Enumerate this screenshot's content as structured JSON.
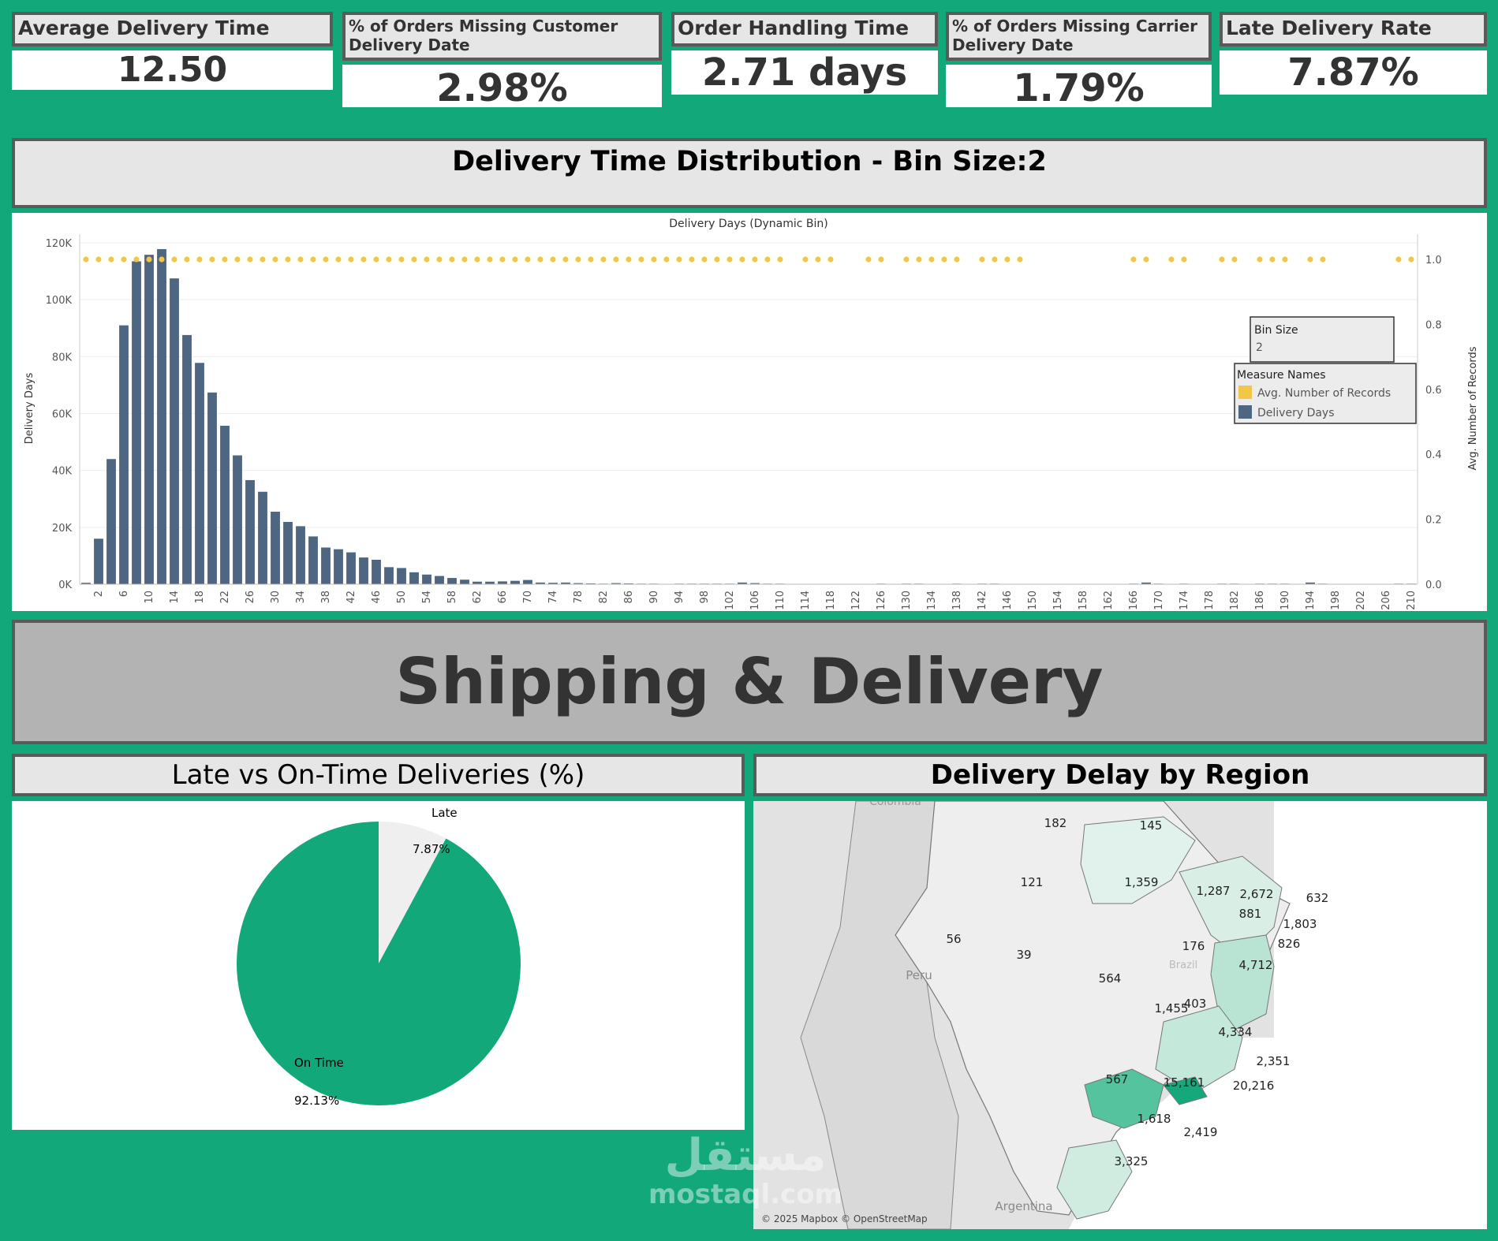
{
  "kpis": [
    {
      "title": "Average Delivery Time",
      "value": "12.50"
    },
    {
      "title": "% of Orders Missing Customer Delivery Date",
      "value": "2.98%"
    },
    {
      "title": "Order Handling Time",
      "value": "2.71 days"
    },
    {
      "title": "% of Orders Missing Carrier Delivery Date",
      "value": "1.79%"
    },
    {
      "title": "Late Delivery Rate",
      "value": "7.87%"
    }
  ],
  "distribution": {
    "panel_title": "Delivery Time Distribution - Bin Size:2",
    "chart_title": "Delivery Days (Dynamic Bin)",
    "y_left_label": "Delivery Days",
    "y_right_label": "Avg. Number of Records",
    "y_left_ticks": [
      "120K",
      "100K",
      "80K",
      "60K",
      "40K",
      "20K",
      "0K"
    ],
    "y_right_ticks": [
      "1.0",
      "0.8",
      "0.6",
      "0.4",
      "0.2",
      "0.0"
    ],
    "bin_size_label": "Bin Size",
    "bin_size_value": "2",
    "legend_title": "Measure Names",
    "legend_items": [
      {
        "label": "Avg. Number of Records",
        "color": "#f2c649"
      },
      {
        "label": "Delivery Days",
        "color": "#4e6680"
      }
    ]
  },
  "dashboard_title": "Shipping & Delivery",
  "pie": {
    "panel_title": "Late vs On-Time Deliveries (%)",
    "late_label": "Late",
    "late_value": "7.87%",
    "ontime_label": "On Time",
    "ontime_value": "92.13%"
  },
  "map": {
    "panel_title": "Delivery Delay by Region",
    "labels": [
      {
        "text": "Colombia"
      },
      {
        "text": "Peru"
      },
      {
        "text": "Argentina"
      },
      {
        "text": "Brazil"
      }
    ],
    "values": [
      "182",
      "145",
      "121",
      "1,359",
      "1,287",
      "2,672",
      "632",
      "881",
      "1,803",
      "826",
      "56",
      "39",
      "176",
      "4,712",
      "564",
      "1,455",
      "403",
      "4,334",
      "2,351",
      "567",
      "15,161",
      "20,216",
      "1,618",
      "2,419",
      "3,325"
    ],
    "attribution": "© 2025 Mapbox © OpenStreetMap"
  },
  "watermark": {
    "arabic": "مستقل",
    "latin": "mostaql.com"
  },
  "chart_data": [
    {
      "type": "bar",
      "title": "Delivery Days (Dynamic Bin)",
      "xlabel": "",
      "ylabel": "Delivery Days",
      "ylim": [
        0,
        120000
      ],
      "x_tick_labels": [
        2,
        6,
        10,
        14,
        18,
        22,
        26,
        30,
        34,
        38,
        42,
        46,
        50,
        54,
        58,
        62,
        66,
        70,
        74,
        78,
        82,
        86,
        90,
        94,
        98,
        102,
        106,
        110,
        114,
        118,
        122,
        126,
        130,
        134,
        138,
        142,
        146,
        150,
        154,
        158,
        162,
        166,
        170,
        174,
        178,
        182,
        186,
        190,
        194,
        198,
        202,
        206,
        210
      ],
      "series": [
        {
          "name": "Delivery Days",
          "x": [
            0,
            2,
            4,
            6,
            8,
            10,
            12,
            14,
            16,
            18,
            20,
            22,
            24,
            26,
            28,
            30,
            32,
            34,
            36,
            38,
            40,
            42,
            44,
            46,
            48,
            50,
            52,
            54,
            56,
            58,
            60,
            62,
            64,
            66,
            68,
            70,
            72,
            74,
            76,
            78,
            80,
            82,
            84,
            86,
            88,
            90,
            94,
            96,
            98,
            100,
            102,
            104,
            106,
            108,
            110,
            126,
            130,
            132,
            138,
            142,
            144,
            166,
            168,
            170,
            174,
            180,
            182,
            186,
            188,
            190,
            194,
            196,
            208,
            210
          ],
          "values": [
            500,
            16000,
            44000,
            91000,
            113500,
            115800,
            117800,
            107500,
            87600,
            77800,
            67400,
            55700,
            45300,
            36600,
            32500,
            25500,
            21900,
            20400,
            16800,
            12900,
            12300,
            11200,
            9400,
            8600,
            6000,
            5700,
            4200,
            3400,
            2900,
            2200,
            1600,
            900,
            900,
            1000,
            1200,
            1500,
            600,
            500,
            600,
            400,
            300,
            200,
            400,
            300,
            200,
            200,
            200,
            200,
            200,
            200,
            200,
            600,
            400,
            200,
            200,
            200,
            200,
            200,
            200,
            200,
            200,
            200,
            600,
            200,
            200,
            200,
            200,
            200,
            200,
            200,
            600,
            200,
            200,
            200
          ]
        },
        {
          "name": "Avg. Number of Records",
          "x": [
            0,
            2,
            4,
            6,
            8,
            10,
            12,
            14,
            16,
            18,
            20,
            22,
            24,
            26,
            28,
            30,
            32,
            34,
            36,
            38,
            40,
            42,
            44,
            46,
            48,
            50,
            52,
            54,
            56,
            58,
            60,
            62,
            64,
            66,
            68,
            70,
            72,
            74,
            76,
            78,
            80,
            82,
            84,
            86,
            88,
            90,
            92,
            94,
            96,
            98,
            100,
            102,
            104,
            106,
            108,
            110,
            114,
            116,
            118,
            124,
            126,
            130,
            132,
            134,
            136,
            138,
            142,
            144,
            146,
            148,
            166,
            168,
            172,
            174,
            180,
            182,
            186,
            188,
            190,
            194,
            196,
            208,
            210
          ],
          "values": [
            1,
            1,
            1,
            1,
            1,
            1,
            1,
            1,
            1,
            1,
            1,
            1,
            1,
            1,
            1,
            1,
            1,
            1,
            1,
            1,
            1,
            1,
            1,
            1,
            1,
            1,
            1,
            1,
            1,
            1,
            1,
            1,
            1,
            1,
            1,
            1,
            1,
            1,
            1,
            1,
            1,
            1,
            1,
            1,
            1,
            1,
            1,
            1,
            1,
            1,
            1,
            1,
            1,
            1,
            1,
            1,
            1,
            1,
            1,
            1,
            1,
            1,
            1,
            1,
            1,
            1,
            1,
            1,
            1,
            1,
            1,
            1,
            1,
            1,
            1,
            1,
            1,
            1,
            1,
            1,
            1,
            1,
            1
          ]
        }
      ],
      "y2lim": [
        0,
        1.0
      ],
      "legend": "right"
    },
    {
      "type": "pie",
      "title": "Late vs On-Time Deliveries (%)",
      "categories": [
        "Late",
        "On Time"
      ],
      "values": [
        7.87,
        92.13
      ],
      "colors": [
        "#efefef",
        "#12a87a"
      ]
    }
  ]
}
